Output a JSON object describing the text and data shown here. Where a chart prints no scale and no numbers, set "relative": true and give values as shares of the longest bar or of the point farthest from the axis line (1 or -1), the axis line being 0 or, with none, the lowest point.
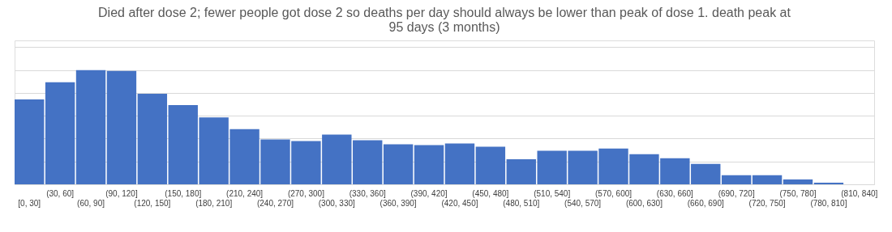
{
  "chart_data": {
    "type": "bar",
    "title": "Died after dose 2; fewer people got dose 2 so deaths per day should always be lower than peak of dose 1. death peak at 95 days (3 months)",
    "categories": [
      "[0, 30]",
      "(30, 60]",
      "(60, 90]",
      "(90, 120]",
      "(120, 150]",
      "(150, 180]",
      "(180, 210]",
      "(210, 240]",
      "(240, 270]",
      "(270, 300]",
      "(300, 330]",
      "(330, 360]",
      "(360, 390]",
      "(390, 420]",
      "(420, 450]",
      "(450, 480]",
      "(480, 510]",
      "(510, 540]",
      "(540, 570]",
      "(570, 600]",
      "(600, 630]",
      "(630, 660]",
      "(660, 690]",
      "(690, 720]",
      "(720, 750]",
      "(750, 780]",
      "(780, 810]",
      "(810, 840]"
    ],
    "values": [
      0.743,
      0.893,
      1,
      0.993,
      0.793,
      0.693,
      0.586,
      0.484,
      0.393,
      0.379,
      0.436,
      0.386,
      0.35,
      0.343,
      0.357,
      0.329,
      0.219,
      0.293,
      0.293,
      0.314,
      0.264,
      0.229,
      0.179,
      0.079,
      0.079,
      0.043,
      0.014,
      0
    ],
    "color": "#4472c4",
    "relative": true,
    "grid": "y"
  }
}
